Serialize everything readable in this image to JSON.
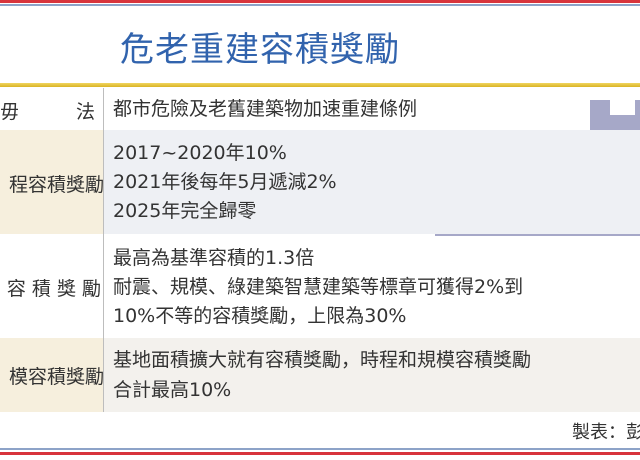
{
  "title": "危老重建容積獎勵",
  "rows": [
    {
      "label": "毋　　　法",
      "lines": [
        "都市危險及老舊建築物加速重建條例"
      ]
    },
    {
      "label": "程容積獎勵",
      "lines": [
        "2017~2020年10%",
        "2021年後每年5月遞減2%",
        "2025年完全歸零"
      ]
    },
    {
      "label": "容 積 獎 勵",
      "lines": [
        "最高為基準容積的1.3倍",
        "耐震、規模、綠建築智慧建築等標章可獲得2%到",
        "10%不等的容積獎勵，上限為30%"
      ]
    },
    {
      "label": "模容積獎勵",
      "lines": [
        "基地面積擴大就有容積獎勵，時程和規模容積獎勵",
        "合計最高10%"
      ]
    }
  ],
  "credit": "製表：彭娟",
  "colors": {
    "title": "#3163ad",
    "accent_line": "#e2c03a",
    "buildings": "#a6a8c8",
    "border_red": "#d8343c"
  }
}
